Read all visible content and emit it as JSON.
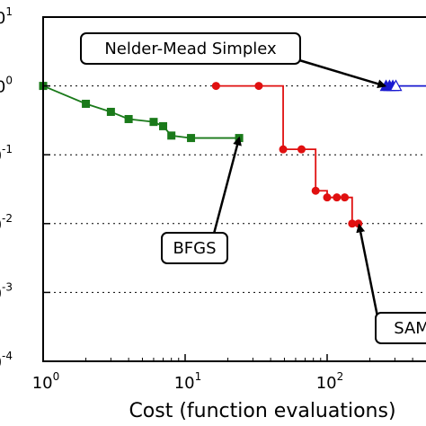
{
  "chart_data": {
    "type": "line",
    "xlabel": "Cost (function evaluations)",
    "ylabel": "",
    "xscale": "log",
    "yscale": "log",
    "xlim": [
      1,
      1000
    ],
    "ylim": [
      0.0001,
      10
    ],
    "x_ticks": [
      {
        "value": 1,
        "base": "10",
        "exp": "0"
      },
      {
        "value": 10,
        "base": "10",
        "exp": "1"
      },
      {
        "value": 100,
        "base": "10",
        "exp": "2"
      }
    ],
    "y_ticks": [
      {
        "value": 10,
        "base": "10",
        "exp": "1"
      },
      {
        "value": 1,
        "base": "10",
        "exp": "0"
      },
      {
        "value": 0.1,
        "base": "10",
        "exp": "-1"
      },
      {
        "value": 0.01,
        "base": "10",
        "exp": "-2"
      },
      {
        "value": 0.001,
        "base": "10",
        "exp": "-3"
      },
      {
        "value": 0.0001,
        "base": "10",
        "exp": "-4"
      }
    ],
    "grid": "horizontal dotted at y decades",
    "series": [
      {
        "color": "#1a7a1a",
        "marker": "square",
        "step": false,
        "points": [
          [
            1,
            1.0
          ],
          [
            2,
            0.55
          ],
          [
            3,
            0.42
          ],
          [
            4,
            0.33
          ],
          [
            6,
            0.3
          ],
          [
            7,
            0.26
          ],
          [
            8,
            0.19
          ],
          [
            11,
            0.175
          ],
          [
            24,
            0.175
          ]
        ]
      },
      {
        "color": "#e01010",
        "marker": "circle",
        "step": true,
        "points": [
          [
            16.5,
            1.0
          ],
          [
            33,
            1.0
          ],
          [
            49,
            0.12
          ],
          [
            66,
            0.12
          ],
          [
            83,
            0.03
          ],
          [
            100,
            0.024
          ],
          [
            117,
            0.024
          ],
          [
            133,
            0.024
          ],
          [
            150,
            0.01
          ],
          [
            166,
            0.01
          ]
        ]
      },
      {
        "color": "#1a1ad0",
        "marker": "triangle",
        "step": false,
        "points": [
          [
            260,
            1.0
          ],
          [
            275,
            1.0
          ],
          [
            290,
            1.0
          ],
          [
            305,
            1.0
          ],
          [
            1000,
            1.0
          ]
        ]
      }
    ],
    "annotations": [
      {
        "text": "Nelder-Mead Simplex",
        "target": [
          255,
          1.0
        ]
      },
      {
        "text": "BFGS",
        "target": [
          24,
          0.175
        ]
      },
      {
        "text": "SAM",
        "target": [
          168,
          0.0095
        ]
      }
    ]
  }
}
